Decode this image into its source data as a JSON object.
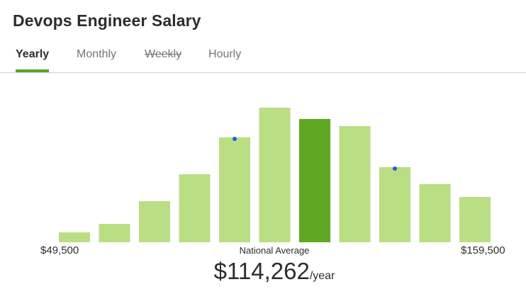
{
  "title": "Devops Engineer Salary",
  "tabs": [
    {
      "label": "Yearly",
      "state": "active"
    },
    {
      "label": "Monthly",
      "state": "normal"
    },
    {
      "label": "Weekly",
      "state": "strikethrough"
    },
    {
      "label": "Hourly",
      "state": "normal"
    }
  ],
  "colors": {
    "accent": "#5aa423",
    "bar": "#bade84",
    "bar_highlight": "#5fa823",
    "marker": "#1b5fe0"
  },
  "chart_data": {
    "type": "bar",
    "bin_count": 11,
    "x_range": [
      "$49,500",
      "$159,500"
    ],
    "values": [
      7,
      13,
      29,
      48,
      74,
      95,
      87,
      82,
      53,
      41,
      32
    ],
    "highlighted_bin": 6,
    "marker_bins": [
      4,
      8
    ],
    "ylim": [
      0,
      100
    ],
    "grid": false,
    "legend": "none"
  },
  "range": {
    "min": "$49,500",
    "max": "$159,500"
  },
  "average": {
    "caption": "National Average",
    "amount": "$114,262",
    "unit": "/year"
  }
}
